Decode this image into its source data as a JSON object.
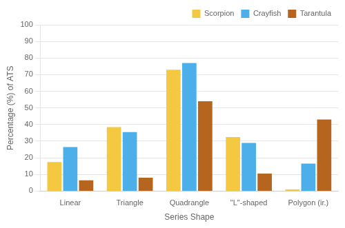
{
  "chart_data": {
    "type": "bar",
    "xlabel": "Series Shape",
    "ylabel": "Percentage (%) of ATS",
    "categories": [
      "Linear",
      "Triangle",
      "Quadrangle",
      "\"L\"-shaped",
      "Polygon (ir.)"
    ],
    "series": [
      {
        "name": "Scorpion",
        "color": "#F5C842",
        "values": [
          17.5,
          38.5,
          73,
          32.5,
          1
        ]
      },
      {
        "name": "Crayfish",
        "color": "#4DAFEA",
        "values": [
          26.5,
          35.5,
          77,
          29,
          16.5
        ]
      },
      {
        "name": "Tarantula",
        "color": "#B5651D",
        "values": [
          6.5,
          8,
          54,
          10.5,
          43
        ]
      }
    ],
    "ylim": [
      0,
      100
    ],
    "yticks": [
      0,
      10,
      20,
      30,
      40,
      50,
      60,
      70,
      80,
      90,
      100
    ],
    "grid": true,
    "legend": "upper right"
  }
}
